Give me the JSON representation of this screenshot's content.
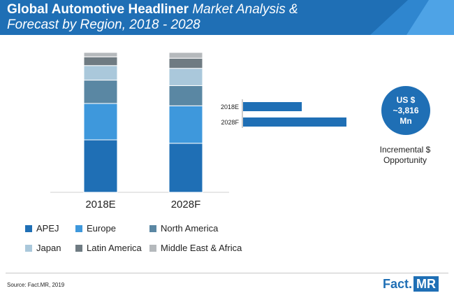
{
  "header": {
    "title_bold": "Global Automotive Headliner",
    "title_rest_line1": "Market Analysis &",
    "title_line2": "Forecast by Region, 2018 - 2028"
  },
  "colors": {
    "header_bg": "#1f6fb5",
    "APEJ": "#1f6fb5",
    "Europe": "#3e98dc",
    "North America": "#5a87a3",
    "Japan": "#aac8db",
    "Latin America": "#6f7b82",
    "Middle East & Africa": "#b5b9bc"
  },
  "chart_data": [
    {
      "type": "bar",
      "stacked": true,
      "categories": [
        "2018E",
        "2028F"
      ],
      "series": [
        {
          "name": "APEJ",
          "values": [
            36,
            34
          ]
        },
        {
          "name": "Europe",
          "values": [
            25,
            26
          ]
        },
        {
          "name": "North America",
          "values": [
            16,
            14
          ]
        },
        {
          "name": "Japan",
          "values": [
            10,
            12
          ]
        },
        {
          "name": "Latin America",
          "values": [
            6,
            7
          ]
        },
        {
          "name": "Middle East & Africa",
          "values": [
            3,
            4
          ]
        }
      ],
      "legend": "bottom"
    },
    {
      "type": "bar",
      "orientation": "horizontal",
      "categories": [
        "2018E",
        "2028F"
      ],
      "values": [
        50,
        88
      ]
    }
  ],
  "bubble": {
    "line1": "US $",
    "line2": "~3,816",
    "line3": "Mn",
    "caption_line1": "Incremental $",
    "caption_line2": "Opportunity"
  },
  "footer": {
    "source": "Source: Fact.MR, 2019",
    "logo_fact": "Fact",
    "logo_dot": ".",
    "logo_mr": "MR"
  }
}
